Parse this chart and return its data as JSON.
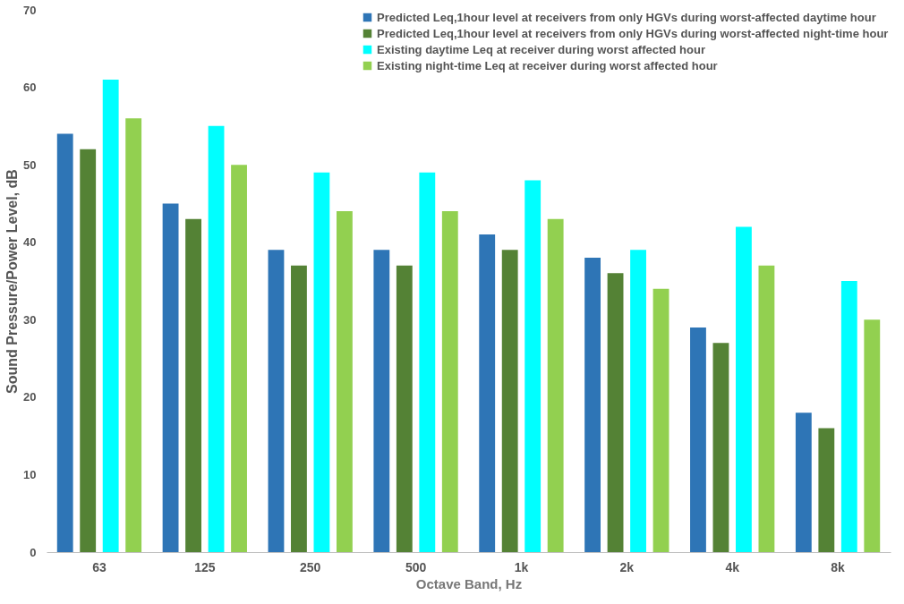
{
  "chart_data": {
    "type": "bar",
    "xlabel": "Octave Band, Hz",
    "ylabel": "Sound Pressure/Power Level, dB",
    "categories": [
      "63",
      "125",
      "250",
      "500",
      "1k",
      "2k",
      "4k",
      "8k"
    ],
    "series": [
      {
        "name": "Predicted Leq,1hour level at receivers from only HGVs during worst-affected daytime hour",
        "color": "#2e75b6",
        "values": [
          54,
          45,
          39,
          39,
          41,
          38,
          29,
          18
        ]
      },
      {
        "name": "Predicted Leq,1hour level at receivers from only HGVs during worst-affected night-time hour",
        "color": "#548235",
        "values": [
          52,
          43,
          37,
          37,
          39,
          36,
          27,
          16
        ]
      },
      {
        "name": "Existing daytime Leq at receiver during worst affected hour",
        "color": "#00ffff",
        "values": [
          61,
          55,
          49,
          49,
          48,
          39,
          42,
          35
        ]
      },
      {
        "name": "Existing night-time Leq at receiver during worst affected hour",
        "color": "#92d050",
        "values": [
          56,
          50,
          44,
          44,
          43,
          34,
          37,
          30
        ]
      }
    ],
    "ylim": [
      0,
      70
    ],
    "yticks": [
      0,
      10,
      20,
      30,
      40,
      50,
      60,
      70
    ],
    "grid": false,
    "legend": "top right"
  }
}
